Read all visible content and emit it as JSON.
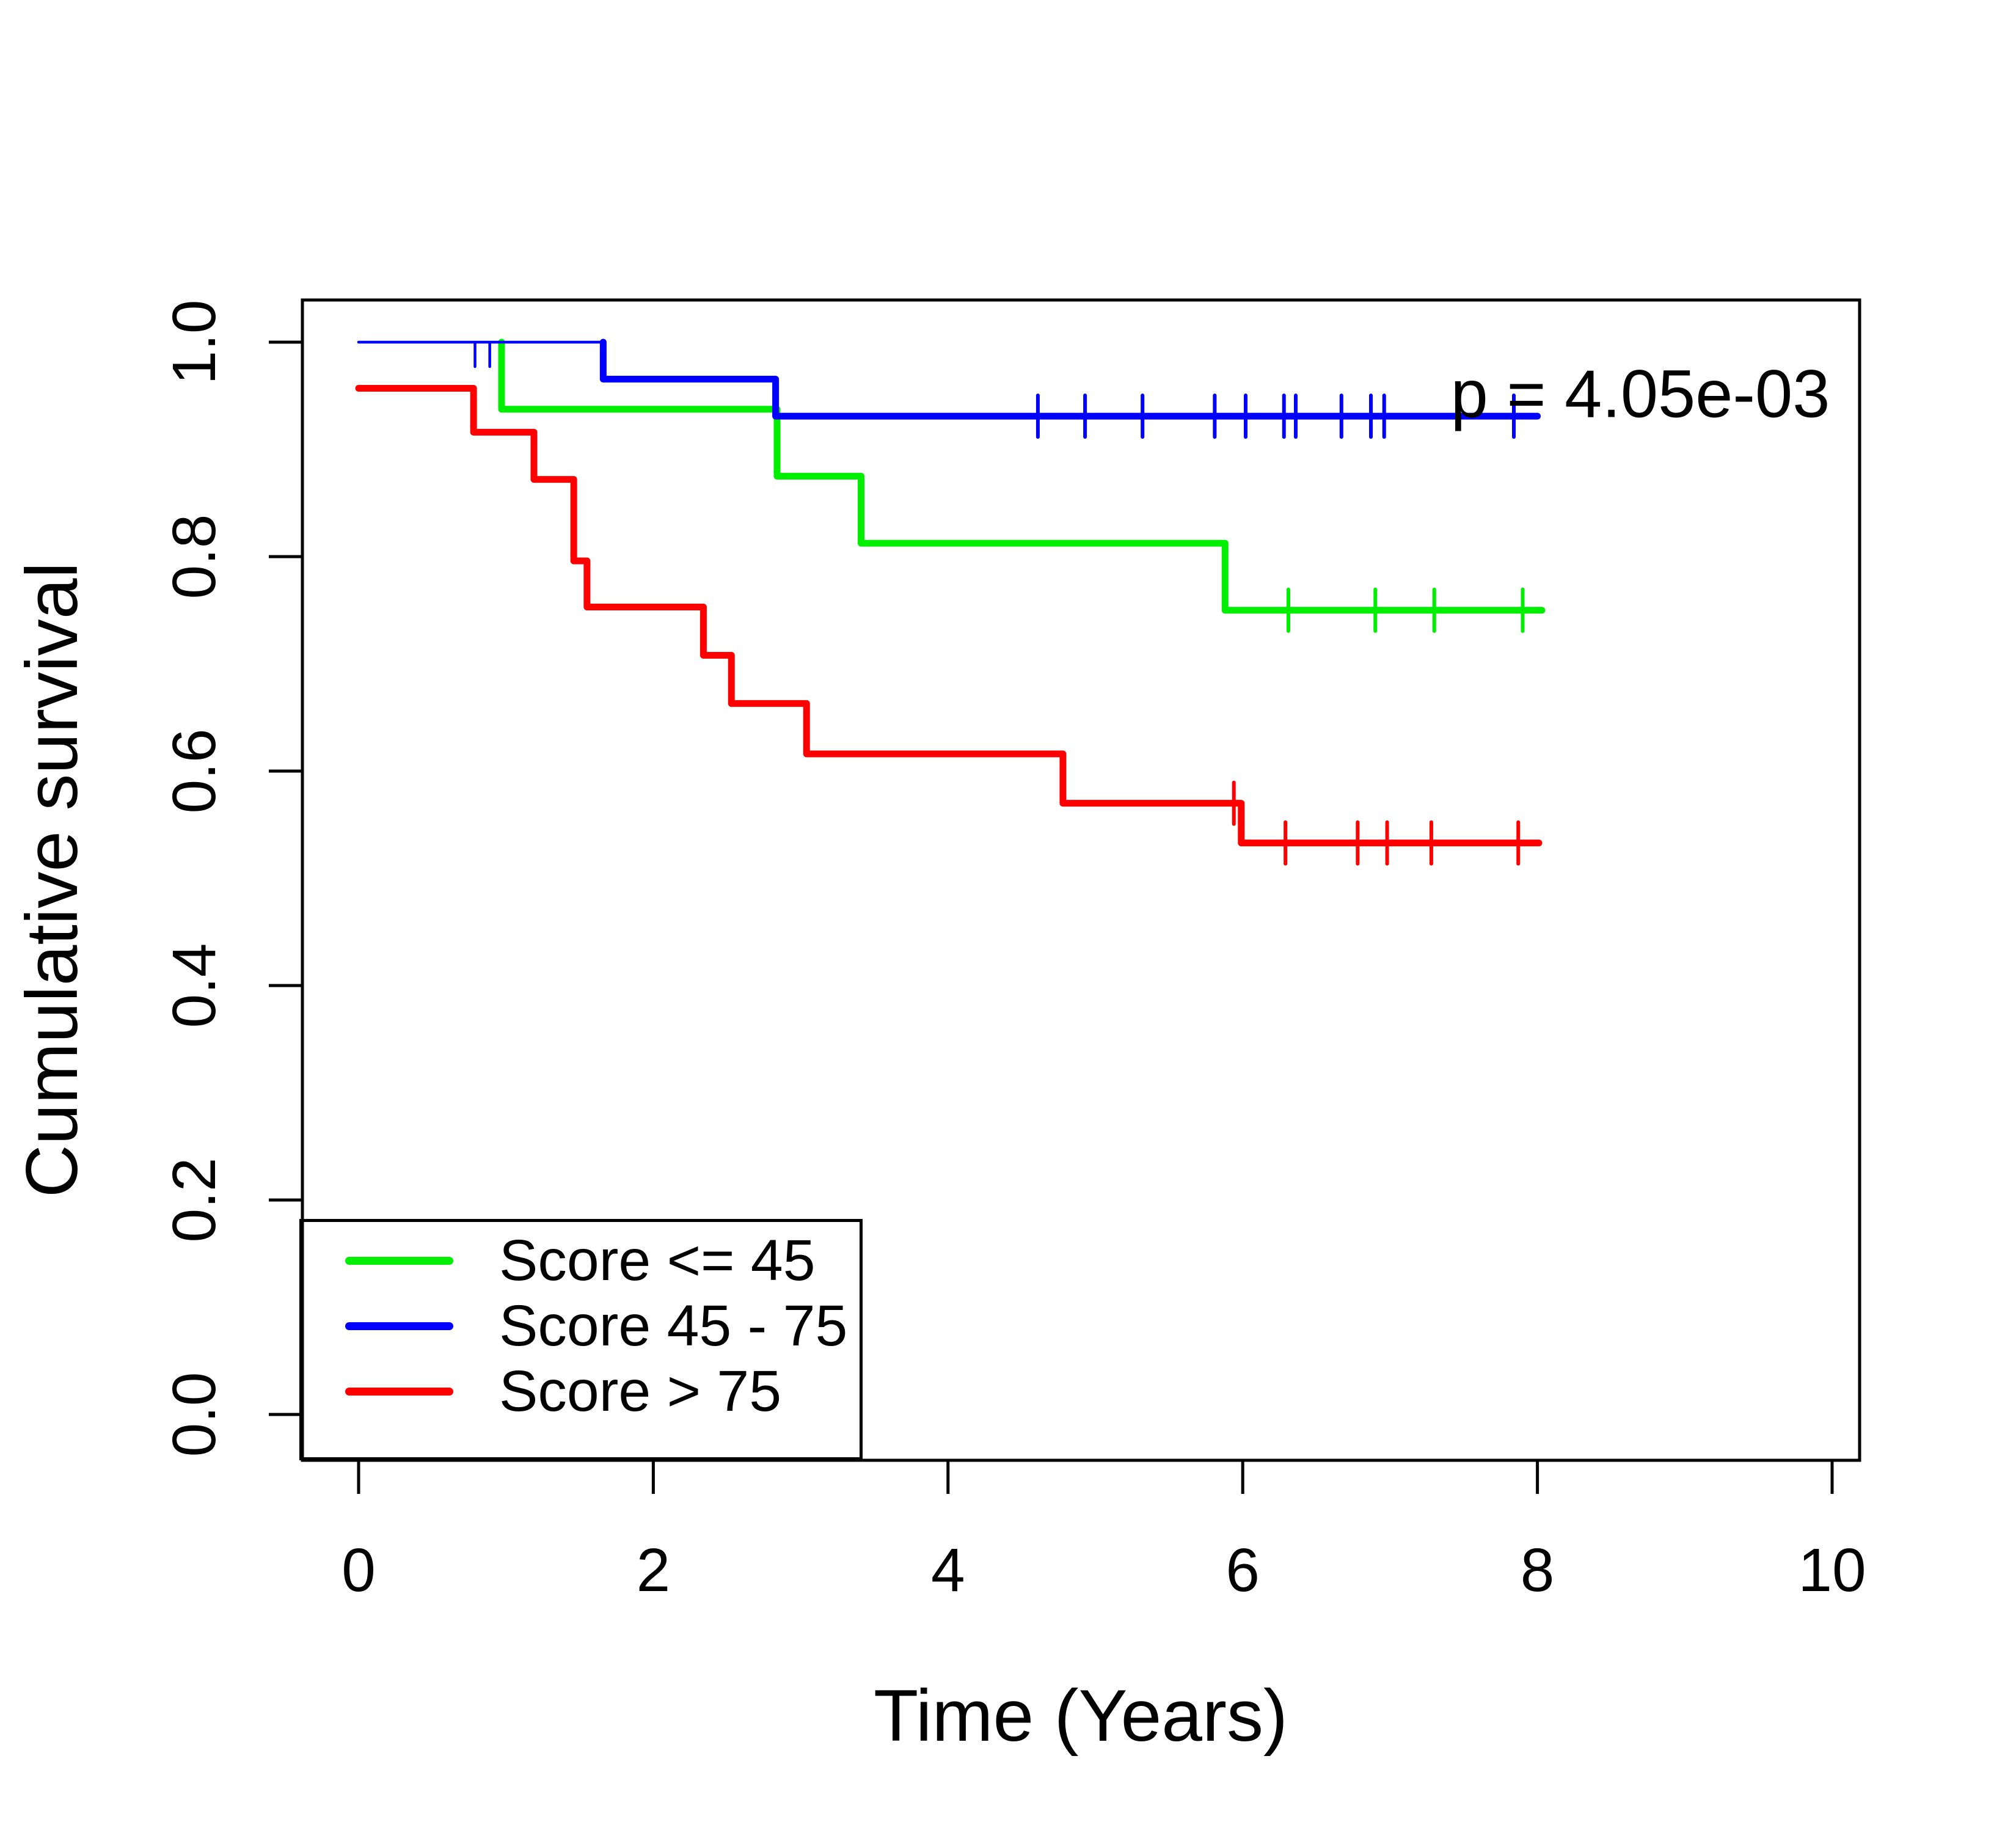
{
  "chart_data": {
    "type": "line",
    "subtype": "kaplan-meier-step",
    "title": "",
    "xlabel": "Time (Years)",
    "ylabel": "Cumulative survival",
    "annotation": "p = 4.05e-03",
    "xlim": [
      0,
      10
    ],
    "ylim": [
      0.0,
      1.0
    ],
    "x_ticks": [
      "0",
      "2",
      "4",
      "6",
      "8",
      "10"
    ],
    "y_ticks": [
      "0.0",
      "0.2",
      "0.4",
      "0.6",
      "0.8",
      "1.0"
    ],
    "grid": false,
    "legend_position": "bottom-left",
    "axis_color": "#000000",
    "background_color": "#ffffff",
    "series": [
      {
        "name": "Score <= 45",
        "color": "#00ee00",
        "start": [
          0.97,
          1.0
        ],
        "steps": [
          [
            0.97,
            0.9375
          ],
          [
            2.84,
            0.875
          ],
          [
            3.41,
            0.8125
          ],
          [
            5.88,
            0.75
          ]
        ],
        "end": 8.03,
        "censor_times": [
          [
            6.31,
            0.75
          ],
          [
            6.9,
            0.75
          ],
          [
            7.3,
            0.75
          ],
          [
            7.9,
            0.75
          ]
        ]
      },
      {
        "name": "Score 45 - 75",
        "color": "#0000ff",
        "start": [
          0.0,
          1.0
        ],
        "thin_until": 1.66,
        "steps": [
          [
            1.66,
            0.9655
          ],
          [
            2.83,
            0.931
          ]
        ],
        "end": 8.0,
        "censor_times": [
          [
            0.79,
            1.0,
            "half"
          ],
          [
            0.89,
            1.0,
            "half"
          ],
          [
            4.61,
            0.931
          ],
          [
            4.93,
            0.931
          ],
          [
            5.32,
            0.931
          ],
          [
            5.81,
            0.931
          ],
          [
            6.02,
            0.931
          ],
          [
            6.28,
            0.931
          ],
          [
            6.36,
            0.931
          ],
          [
            6.67,
            0.931
          ],
          [
            6.87,
            0.931
          ],
          [
            6.96,
            0.931
          ],
          [
            7.84,
            0.931
          ]
        ]
      },
      {
        "name": "Score > 75",
        "color": "#ff0000",
        "start": [
          0.0,
          0.957
        ],
        "steps": [
          [
            0.78,
            0.916
          ],
          [
            1.19,
            0.872
          ],
          [
            1.46,
            0.796
          ],
          [
            1.55,
            0.753
          ],
          [
            2.34,
            0.708
          ],
          [
            2.53,
            0.663
          ],
          [
            3.04,
            0.616
          ],
          [
            4.78,
            0.57
          ],
          [
            5.99,
            0.533
          ]
        ],
        "end": 8.01,
        "censor_times": [
          [
            5.94,
            0.57
          ],
          [
            6.29,
            0.533
          ],
          [
            6.78,
            0.533
          ],
          [
            6.98,
            0.533
          ],
          [
            7.28,
            0.533
          ],
          [
            7.87,
            0.533
          ]
        ]
      }
    ]
  }
}
